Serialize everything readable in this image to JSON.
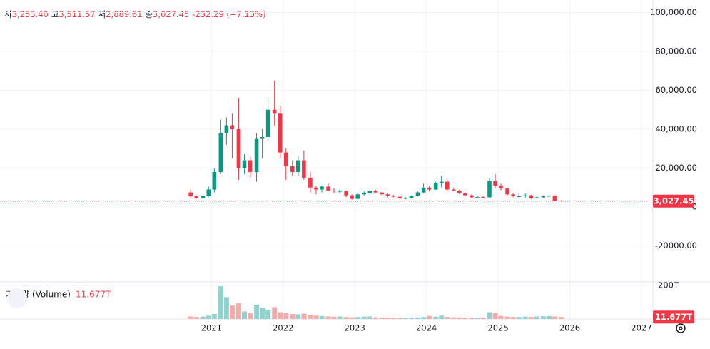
{
  "chart_data": {
    "type": "candlestick",
    "legend": [
      {
        "label": "시",
        "value": "3,253.40"
      },
      {
        "label": "고",
        "value": "3,511.57"
      },
      {
        "label": "저",
        "value": "2,889.61"
      },
      {
        "label": "종",
        "value": "3,027.45"
      }
    ],
    "change": "-232.29 (−7.13%)",
    "x": [
      2020.71,
      2020.79,
      2020.88,
      2020.96,
      2021.04,
      2021.13,
      2021.21,
      2021.29,
      2021.38,
      2021.46,
      2021.54,
      2021.63,
      2021.71,
      2021.79,
      2021.88,
      2021.96,
      2022.04,
      2022.13,
      2022.21,
      2022.29,
      2022.38,
      2022.46,
      2022.54,
      2022.63,
      2022.71,
      2022.79,
      2022.88,
      2022.96,
      2023.04,
      2023.13,
      2023.21,
      2023.29,
      2023.38,
      2023.46,
      2023.54,
      2023.63,
      2023.71,
      2023.79,
      2023.88,
      2023.96,
      2024.04,
      2024.13,
      2024.21,
      2024.29,
      2024.38,
      2024.46,
      2024.54,
      2024.63,
      2024.71,
      2024.79,
      2024.88,
      2024.96,
      2025.04,
      2025.13,
      2025.21,
      2025.29,
      2025.38,
      2025.46,
      2025.54,
      2025.63,
      2025.71,
      2025.79,
      2025.88
    ],
    "open": [
      7500,
      5500,
      4600,
      5600,
      9000,
      18000,
      38000,
      42000,
      40000,
      20000,
      24000,
      18000,
      35000,
      36000,
      50000,
      48000,
      28000,
      21000,
      18000,
      24000,
      15000,
      10000,
      9000,
      10500,
      8500,
      8000,
      8200,
      6000,
      4200,
      6500,
      7200,
      8200,
      7500,
      6500,
      5800,
      5300,
      4500,
      4700,
      5800,
      7500,
      10000,
      9000,
      12500,
      13000,
      9000,
      8500,
      7000,
      6000,
      5000,
      5200,
      5000,
      13500,
      11000,
      9500,
      6500,
      5500,
      5500,
      6000,
      4500,
      5000,
      5500,
      5800,
      3253.4
    ],
    "high": [
      9000,
      6000,
      6200,
      10500,
      20000,
      45000,
      46000,
      48000,
      56000,
      27000,
      26000,
      38000,
      40000,
      56000,
      65000,
      52000,
      30000,
      24000,
      26000,
      29000,
      18000,
      11000,
      11000,
      12000,
      9500,
      9000,
      8500,
      6500,
      7000,
      8000,
      8500,
      8800,
      7800,
      7000,
      6200,
      5500,
      5000,
      6000,
      8000,
      12000,
      11000,
      13000,
      16000,
      14000,
      10000,
      9000,
      7500,
      6500,
      5500,
      5800,
      15000,
      17000,
      12000,
      10000,
      7000,
      7000,
      7000,
      6300,
      5500,
      6000,
      6500,
      6000,
      3511.57
    ],
    "low": [
      5000,
      4200,
      4200,
      5200,
      7500,
      17000,
      32000,
      25000,
      14000,
      17000,
      15000,
      13000,
      25000,
      34000,
      42000,
      25000,
      14000,
      16000,
      16000,
      14000,
      7500,
      6500,
      7500,
      8000,
      7000,
      7000,
      5000,
      3800,
      4000,
      6000,
      6500,
      7200,
      6200,
      5000,
      5000,
      4000,
      4000,
      4500,
      5500,
      7200,
      8000,
      8800,
      10000,
      8500,
      8000,
      6500,
      5500,
      4500,
      4500,
      4800,
      4800,
      9500,
      8500,
      6000,
      5000,
      5000,
      5000,
      4000,
      4200,
      4500,
      5000,
      3300,
      2889.61
    ],
    "close": [
      5500,
      4600,
      5600,
      9000,
      18000,
      38000,
      42000,
      40000,
      20000,
      24000,
      18000,
      35000,
      36000,
      50000,
      48000,
      28000,
      21000,
      18000,
      24000,
      15000,
      10000,
      9000,
      10500,
      8500,
      8000,
      8200,
      6000,
      4200,
      6500,
      7200,
      8200,
      7500,
      6500,
      5800,
      5300,
      4500,
      4700,
      5800,
      7500,
      10000,
      9000,
      12500,
      13000,
      9000,
      8500,
      7000,
      6000,
      5000,
      5200,
      5000,
      13500,
      11000,
      9500,
      6500,
      5500,
      5500,
      6000,
      4500,
      5000,
      5500,
      5800,
      3253.4,
      3027.45
    ],
    "up_color": "#089981",
    "down_color": "#f23645",
    "xlim": [
      2018.05,
      2027.16
    ],
    "xticks": [
      2021,
      2022,
      2023,
      2024,
      2025,
      2026,
      2027
    ],
    "ylim": [
      -38500,
      106400
    ],
    "yticks": [
      {
        "value": -20000,
        "label": "-20000.00"
      },
      {
        "value": 0,
        "label": "0"
      },
      {
        "value": 20000,
        "label": "20,000.00"
      },
      {
        "value": 40000,
        "label": "40,000.00"
      },
      {
        "value": 60000,
        "label": "60,000.00"
      },
      {
        "value": 80000,
        "label": "80,000.00"
      },
      {
        "value": 100000,
        "label": "100,000.00"
      }
    ],
    "last_price": {
      "value": 3027.45,
      "label": "3,027.45"
    },
    "grid": true,
    "volume": {
      "name": "거래량 (Volume)",
      "last_value_label": "11.677T",
      "up_color": "#92d2cc",
      "down_color": "#f7a9a7",
      "ylim": [
        0,
        221
      ],
      "yticks": [
        {
          "value": 200,
          "label": "200T"
        }
      ],
      "values": [
        15,
        12,
        14,
        20,
        30,
        195,
        130,
        80,
        95,
        45,
        35,
        85,
        65,
        55,
        70,
        40,
        35,
        30,
        28,
        32,
        25,
        20,
        18,
        15,
        14,
        15,
        12,
        10,
        12,
        14,
        15,
        10,
        9,
        8,
        8,
        7,
        7,
        8,
        9,
        12,
        18,
        14,
        20,
        12,
        10,
        9,
        8,
        8,
        7,
        9,
        40,
        35,
        18,
        14,
        12,
        12,
        14,
        12,
        15,
        16,
        17,
        15,
        11.677
      ]
    }
  }
}
